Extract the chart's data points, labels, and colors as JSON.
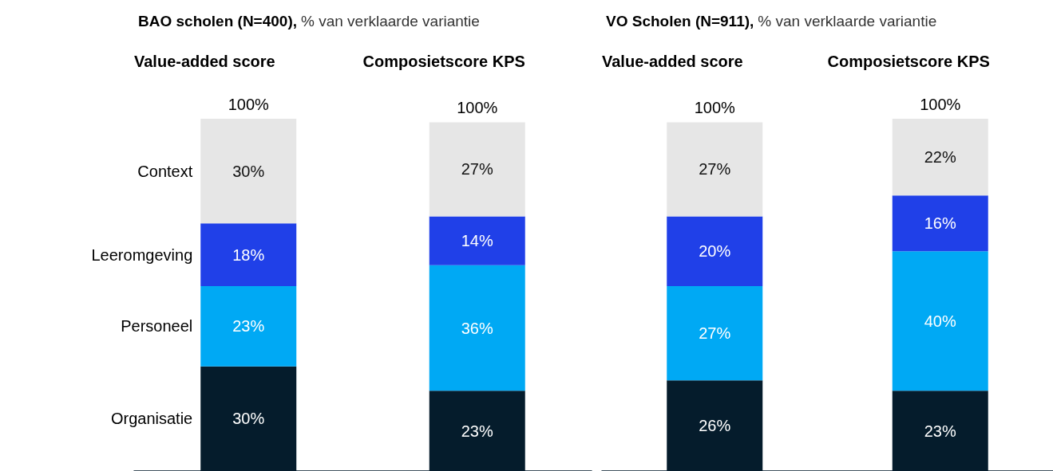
{
  "chart_data": [
    {
      "type": "bar",
      "stacked": true,
      "title": "BAO scholen (N=400),",
      "subtitle": "% van verklaarde variantie",
      "categories": [
        "Value-added score",
        "Composietscore KPS"
      ],
      "series": [
        {
          "name": "Organisatie",
          "color": "#051c2c",
          "values": [
            30,
            23
          ],
          "value_labels": [
            "30%",
            "23%"
          ]
        },
        {
          "name": "Personeel",
          "color": "#00a9f4",
          "values": [
            23,
            36
          ],
          "value_labels": [
            "23%",
            "36%"
          ]
        },
        {
          "name": "Leeromgeving",
          "color": "#2040e8",
          "values": [
            18,
            14
          ],
          "value_labels": [
            "18%",
            "14%"
          ]
        },
        {
          "name": "Context",
          "color": "#e6e6e6",
          "values": [
            30,
            27
          ],
          "value_labels": [
            "30%",
            "27%"
          ]
        }
      ],
      "totals": [
        "100%",
        "100%"
      ],
      "legend": false
    },
    {
      "type": "bar",
      "stacked": true,
      "title": "VO Scholen (N=911),",
      "subtitle": "% van verklaarde variantie",
      "categories": [
        "Value-added score",
        "Composietscore KPS"
      ],
      "series": [
        {
          "color": "#051c2c",
          "values": [
            26,
            23
          ],
          "value_labels": [
            "26%",
            "23%"
          ]
        },
        {
          "color": "#00a9f4",
          "values": [
            27,
            40
          ],
          "value_labels": [
            "27%",
            "40%"
          ]
        },
        {
          "color": "#2040e8",
          "values": [
            20,
            16
          ],
          "value_labels": [
            "20%",
            "16%"
          ]
        },
        {
          "color": "#e6e6e6",
          "values": [
            27,
            22
          ],
          "value_labels": [
            "27%",
            "22%"
          ]
        }
      ],
      "totals": [
        "100%",
        "100%"
      ],
      "legend": false
    }
  ]
}
